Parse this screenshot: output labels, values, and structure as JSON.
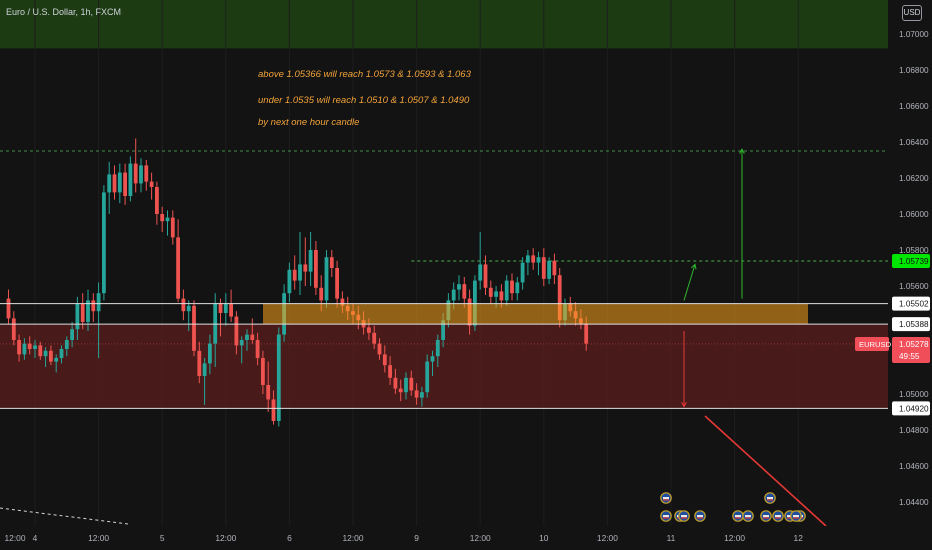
{
  "header": {
    "pair_title": "Euro / U.S. Dollar, 1h, FXCM",
    "currency_button": "USD"
  },
  "annotations": [
    "above 1.05366 will reach 1.0573 & 1.0593 & 1.063",
    "under 1.0535 will reach 1.0510 & 1.0507 & 1.0490",
    "by next one hour candle"
  ],
  "price_axis": {
    "ticks": [
      {
        "label": "1.07000",
        "value": 1.07
      },
      {
        "label": "1.06800",
        "value": 1.068
      },
      {
        "label": "1.06600",
        "value": 1.066
      },
      {
        "label": "1.06400",
        "value": 1.064
      },
      {
        "label": "1.06200",
        "value": 1.062
      },
      {
        "label": "1.06000",
        "value": 1.06
      },
      {
        "label": "1.05800",
        "value": 1.058
      },
      {
        "label": "1.05600",
        "value": 1.056
      },
      {
        "label": "1.05000",
        "value": 1.05
      },
      {
        "label": "1.04800",
        "value": 1.048
      },
      {
        "label": "1.04600",
        "value": 1.046
      },
      {
        "label": "1.04400",
        "value": 1.044
      }
    ],
    "badges": [
      {
        "label": "1.05739",
        "value": 1.05739,
        "kind": "green"
      },
      {
        "label": "1.05502",
        "value": 1.05502,
        "kind": "white"
      },
      {
        "label": "1.05388",
        "value": 1.05388,
        "kind": "white"
      },
      {
        "label": "1.04920",
        "value": 1.0492,
        "kind": "white"
      }
    ],
    "current_price": {
      "symbol": "EURUSD",
      "price": "1.05278",
      "countdown": "49:55",
      "value": 1.05278
    }
  },
  "time_axis": {
    "labels": [
      {
        "label": "12:00",
        "idx": -7
      },
      {
        "label": "4",
        "idx": 5
      },
      {
        "label": "12:00",
        "idx": 17
      },
      {
        "label": "5",
        "idx": 29
      },
      {
        "label": "12:00",
        "idx": 41
      },
      {
        "label": "6",
        "idx": 53
      },
      {
        "label": "12:00",
        "idx": 65
      },
      {
        "label": "9",
        "idx": 77
      },
      {
        "label": "12:00",
        "idx": 89
      },
      {
        "label": "10",
        "idx": 101
      },
      {
        "label": "12:00",
        "idx": 113
      },
      {
        "label": "11",
        "idx": 125
      },
      {
        "label": "12:00",
        "idx": 137
      },
      {
        "label": "12",
        "idx": 149
      }
    ]
  },
  "levels": {
    "top_dashed": 1.0635,
    "target_dashed": 1.05739,
    "zone_top": 1.05502,
    "zone_bottom": 1.05388,
    "support": 1.0492,
    "green_zone_top": 1.0715,
    "green_zone_bottom": 1.0692
  },
  "arrows": [
    {
      "direction": "up",
      "from": 1.0553,
      "to": 1.0636
    },
    {
      "direction": "up-small",
      "from": 1.0552,
      "to": 1.0572
    },
    {
      "direction": "down",
      "from": 1.0535,
      "to": 1.0493
    }
  ],
  "event_markers": {
    "count": 13
  },
  "colors": {
    "background": "#131313",
    "bull": "#26a69a",
    "bear": "#ef5350",
    "resistance_zone": "#f7a21b",
    "sell_zone": "#5b1d1d",
    "green_zone": "#1c3b12",
    "annotation": "#f2a33a",
    "target_line": "#4caf50",
    "arrow_green": "#2eb82e",
    "arrow_red": "#e53935"
  },
  "chart_data": {
    "type": "candlestick",
    "title": "Euro / U.S. Dollar, 1h, FXCM",
    "ylim": [
      1.0438,
      1.0712
    ],
    "candles": [
      [
        1.0553,
        1.0558,
        1.0539,
        1.0542
      ],
      [
        1.0542,
        1.0546,
        1.0527,
        1.053
      ],
      [
        1.053,
        1.0533,
        1.0518,
        1.0522
      ],
      [
        1.0522,
        1.0531,
        1.0519,
        1.0528
      ],
      [
        1.0528,
        1.0532,
        1.0522,
        1.0525
      ],
      [
        1.0525,
        1.053,
        1.052,
        1.0527
      ],
      [
        1.0527,
        1.0529,
        1.0519,
        1.0521
      ],
      [
        1.0521,
        1.0526,
        1.0515,
        1.0524
      ],
      [
        1.0524,
        1.0527,
        1.0516,
        1.0518
      ],
      [
        1.0518,
        1.0522,
        1.0512,
        1.052
      ],
      [
        1.052,
        1.0527,
        1.0517,
        1.0525
      ],
      [
        1.0525,
        1.0532,
        1.0521,
        1.053
      ],
      [
        1.053,
        1.054,
        1.0526,
        1.0536
      ],
      [
        1.0536,
        1.0554,
        1.053,
        1.055
      ],
      [
        1.055,
        1.0556,
        1.0536,
        1.054
      ],
      [
        1.054,
        1.0558,
        1.0535,
        1.0552
      ],
      [
        1.0552,
        1.0556,
        1.054,
        1.0546
      ],
      [
        1.0546,
        1.0562,
        1.052,
        1.0556
      ],
      [
        1.0556,
        1.0616,
        1.0552,
        1.0612
      ],
      [
        1.0612,
        1.0629,
        1.06,
        1.0622
      ],
      [
        1.0622,
        1.0627,
        1.0608,
        1.0612
      ],
      [
        1.0612,
        1.0628,
        1.0606,
        1.0623
      ],
      [
        1.0623,
        1.0628,
        1.0605,
        1.061
      ],
      [
        1.061,
        1.0632,
        1.0607,
        1.0628
      ],
      [
        1.0628,
        1.0642,
        1.0612,
        1.0617
      ],
      [
        1.0617,
        1.0631,
        1.0612,
        1.0627
      ],
      [
        1.0627,
        1.063,
        1.0613,
        1.0618
      ],
      [
        1.0618,
        1.0623,
        1.0608,
        1.0615
      ],
      [
        1.0615,
        1.0618,
        1.0594,
        1.06
      ],
      [
        1.06,
        1.0604,
        1.059,
        1.0596
      ],
      [
        1.0596,
        1.0602,
        1.0588,
        1.0598
      ],
      [
        1.0598,
        1.0602,
        1.0583,
        1.0587
      ],
      [
        1.0587,
        1.0597,
        1.0551,
        1.0553
      ],
      [
        1.0553,
        1.0558,
        1.0541,
        1.0546
      ],
      [
        1.0546,
        1.0552,
        1.0535,
        1.0549
      ],
      [
        1.0549,
        1.0552,
        1.0521,
        1.0524
      ],
      [
        1.0524,
        1.0529,
        1.0506,
        1.051
      ],
      [
        1.051,
        1.052,
        1.0494,
        1.0517
      ],
      [
        1.0517,
        1.0533,
        1.0511,
        1.0528
      ],
      [
        1.0528,
        1.0556,
        1.0515,
        1.055
      ],
      [
        1.055,
        1.0553,
        1.0532,
        1.0545
      ],
      [
        1.0545,
        1.0556,
        1.0538,
        1.055
      ],
      [
        1.055,
        1.0558,
        1.054,
        1.0543
      ],
      [
        1.0543,
        1.0546,
        1.0522,
        1.0527
      ],
      [
        1.0527,
        1.0532,
        1.0517,
        1.053
      ],
      [
        1.053,
        1.0536,
        1.0524,
        1.0533
      ],
      [
        1.0533,
        1.0542,
        1.0528,
        1.053
      ],
      [
        1.053,
        1.0534,
        1.0516,
        1.052
      ],
      [
        1.052,
        1.0524,
        1.05,
        1.0505
      ],
      [
        1.0505,
        1.0518,
        1.049,
        1.0497
      ],
      [
        1.0497,
        1.0502,
        1.0483,
        1.0485
      ],
      [
        1.0485,
        1.0537,
        1.0482,
        1.0533
      ],
      [
        1.0533,
        1.0561,
        1.0529,
        1.0556
      ],
      [
        1.0556,
        1.0573,
        1.0551,
        1.0569
      ],
      [
        1.0569,
        1.0577,
        1.0558,
        1.0563
      ],
      [
        1.0563,
        1.059,
        1.0555,
        1.0572
      ],
      [
        1.0572,
        1.0587,
        1.056,
        1.0568
      ],
      [
        1.0568,
        1.059,
        1.056,
        1.058
      ],
      [
        1.058,
        1.0585,
        1.0555,
        1.0559
      ],
      [
        1.0559,
        1.0566,
        1.0546,
        1.0552
      ],
      [
        1.0552,
        1.058,
        1.0548,
        1.0576
      ],
      [
        1.0576,
        1.058,
        1.0565,
        1.057
      ],
      [
        1.057,
        1.0574,
        1.0548,
        1.0553
      ],
      [
        1.0553,
        1.0557,
        1.0545,
        1.0549
      ],
      [
        1.0549,
        1.0554,
        1.0541,
        1.0546
      ],
      [
        1.0546,
        1.055,
        1.0539,
        1.0544
      ],
      [
        1.0544,
        1.0549,
        1.0536,
        1.0541
      ],
      [
        1.0541,
        1.0546,
        1.0533,
        1.0537
      ],
      [
        1.0537,
        1.0542,
        1.053,
        1.0534
      ],
      [
        1.0534,
        1.0538,
        1.0525,
        1.0528
      ],
      [
        1.0528,
        1.0531,
        1.0519,
        1.0522
      ],
      [
        1.0522,
        1.0527,
        1.0512,
        1.0516
      ],
      [
        1.0516,
        1.0521,
        1.0505,
        1.0509
      ],
      [
        1.0509,
        1.0514,
        1.05,
        1.0503
      ],
      [
        1.0503,
        1.0508,
        1.0496,
        1.0501
      ],
      [
        1.0501,
        1.0512,
        1.0497,
        1.0509
      ],
      [
        1.0509,
        1.0513,
        1.0499,
        1.0502
      ],
      [
        1.0502,
        1.0506,
        1.0494,
        1.0498
      ],
      [
        1.0498,
        1.0504,
        1.0493,
        1.0501
      ],
      [
        1.0501,
        1.0522,
        1.0498,
        1.0518
      ],
      [
        1.0518,
        1.0524,
        1.051,
        1.0521
      ],
      [
        1.0521,
        1.0533,
        1.0515,
        1.053
      ],
      [
        1.053,
        1.0545,
        1.0526,
        1.0541
      ],
      [
        1.0541,
        1.0556,
        1.0537,
        1.0552
      ],
      [
        1.0552,
        1.0562,
        1.0547,
        1.0558
      ],
      [
        1.0558,
        1.0566,
        1.0552,
        1.0561
      ],
      [
        1.0561,
        1.0565,
        1.0548,
        1.0553
      ],
      [
        1.0553,
        1.0558,
        1.0533,
        1.0538
      ],
      [
        1.0538,
        1.0566,
        1.0535,
        1.0563
      ],
      [
        1.0563,
        1.059,
        1.0558,
        1.0572
      ],
      [
        1.0572,
        1.0577,
        1.0555,
        1.0559
      ],
      [
        1.0559,
        1.0563,
        1.055,
        1.0554
      ],
      [
        1.0554,
        1.056,
        1.0548,
        1.0557
      ],
      [
        1.0557,
        1.0561,
        1.0548,
        1.0552
      ],
      [
        1.0552,
        1.0566,
        1.0549,
        1.0563
      ],
      [
        1.0563,
        1.0567,
        1.0552,
        1.0556
      ],
      [
        1.0556,
        1.0565,
        1.0552,
        1.0562
      ],
      [
        1.0562,
        1.0576,
        1.0558,
        1.0573
      ],
      [
        1.0573,
        1.058,
        1.0566,
        1.0577
      ],
      [
        1.0577,
        1.0581,
        1.0569,
        1.0573
      ],
      [
        1.0573,
        1.0579,
        1.0566,
        1.0576
      ],
      [
        1.0576,
        1.0581,
        1.056,
        1.0564
      ],
      [
        1.0564,
        1.0576,
        1.0561,
        1.0574
      ],
      [
        1.0574,
        1.0578,
        1.0561,
        1.0566
      ],
      [
        1.0566,
        1.057,
        1.0537,
        1.0541
      ],
      [
        1.0541,
        1.0553,
        1.0538,
        1.055
      ],
      [
        1.055,
        1.0554,
        1.0543,
        1.0546
      ],
      [
        1.0546,
        1.0551,
        1.0538,
        1.0542
      ],
      [
        1.0542,
        1.0547,
        1.0536,
        1.0539
      ],
      [
        1.0539,
        1.0543,
        1.0524,
        1.0528
      ]
    ]
  }
}
